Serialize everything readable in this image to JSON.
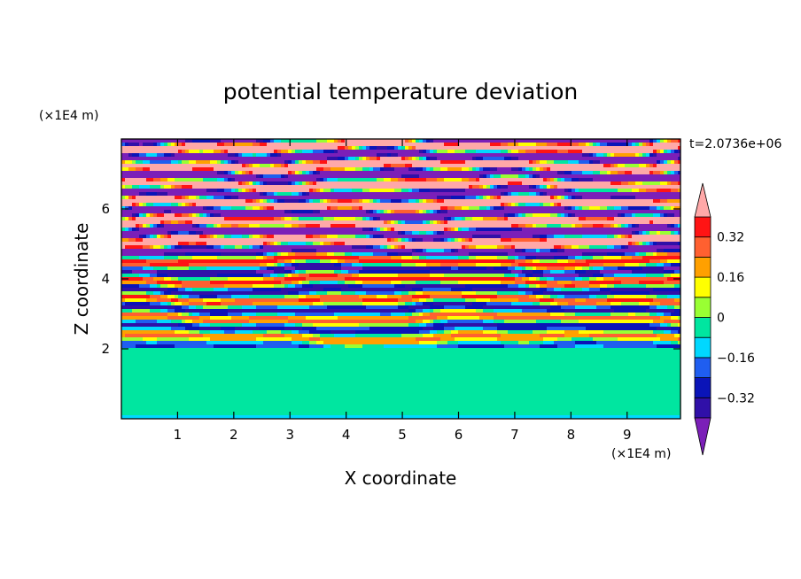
{
  "chart_data": {
    "type": "heatmap",
    "title": "potential temperature deviation",
    "xlabel": "X coordinate",
    "ylabel": "Z coordinate",
    "x_unit": "(×1E4 m)",
    "y_unit": "(×1E4 m)",
    "time_label": "t=2.0736e+06",
    "xlim": [
      0,
      9.95
    ],
    "ylim": [
      0,
      8
    ],
    "x_ticks": [
      1,
      2,
      3,
      4,
      5,
      6,
      7,
      8,
      9
    ],
    "y_ticks": [
      2,
      4,
      6
    ],
    "x_tick_labels": [
      "1",
      "2",
      "3",
      "4",
      "5",
      "6",
      "7",
      "8",
      "9"
    ],
    "y_tick_labels": [
      "2",
      "4",
      "6"
    ],
    "colorbar": {
      "levels": [
        -0.48,
        -0.4,
        -0.32,
        -0.24,
        -0.16,
        -0.08,
        0.0,
        0.08,
        0.16,
        0.24,
        0.32,
        0.4,
        0.48
      ],
      "labels": [
        "0.32",
        "0.16",
        "0",
        "−0.16",
        "−0.32"
      ],
      "label_values": [
        0.32,
        0.16,
        0.0,
        -0.16,
        -0.32
      ],
      "colors": [
        "#7b1fb8",
        "#3010a8",
        "#0a14b8",
        "#1f5ef0",
        "#00d8ff",
        "#00e6a0",
        "#99ff33",
        "#ffff00",
        "#ffa000",
        "#ff6030",
        "#ff1414",
        "#ffa8a8"
      ],
      "extend": "both",
      "grid": false
    },
    "field_description_bands": [
      {
        "z_range": [
          0,
          2.0
        ],
        "regime": "near-zero (0 to -0.08) with patches of -0.08 to 0"
      },
      {
        "z_range": [
          2.0,
          4.8
        ],
        "regime": "mixed layered -0.48 to 0.40"
      },
      {
        "z_range": [
          4.8,
          8.0
        ],
        "regime": "strong layers, alternating >0.40 and < -0.40"
      }
    ]
  }
}
